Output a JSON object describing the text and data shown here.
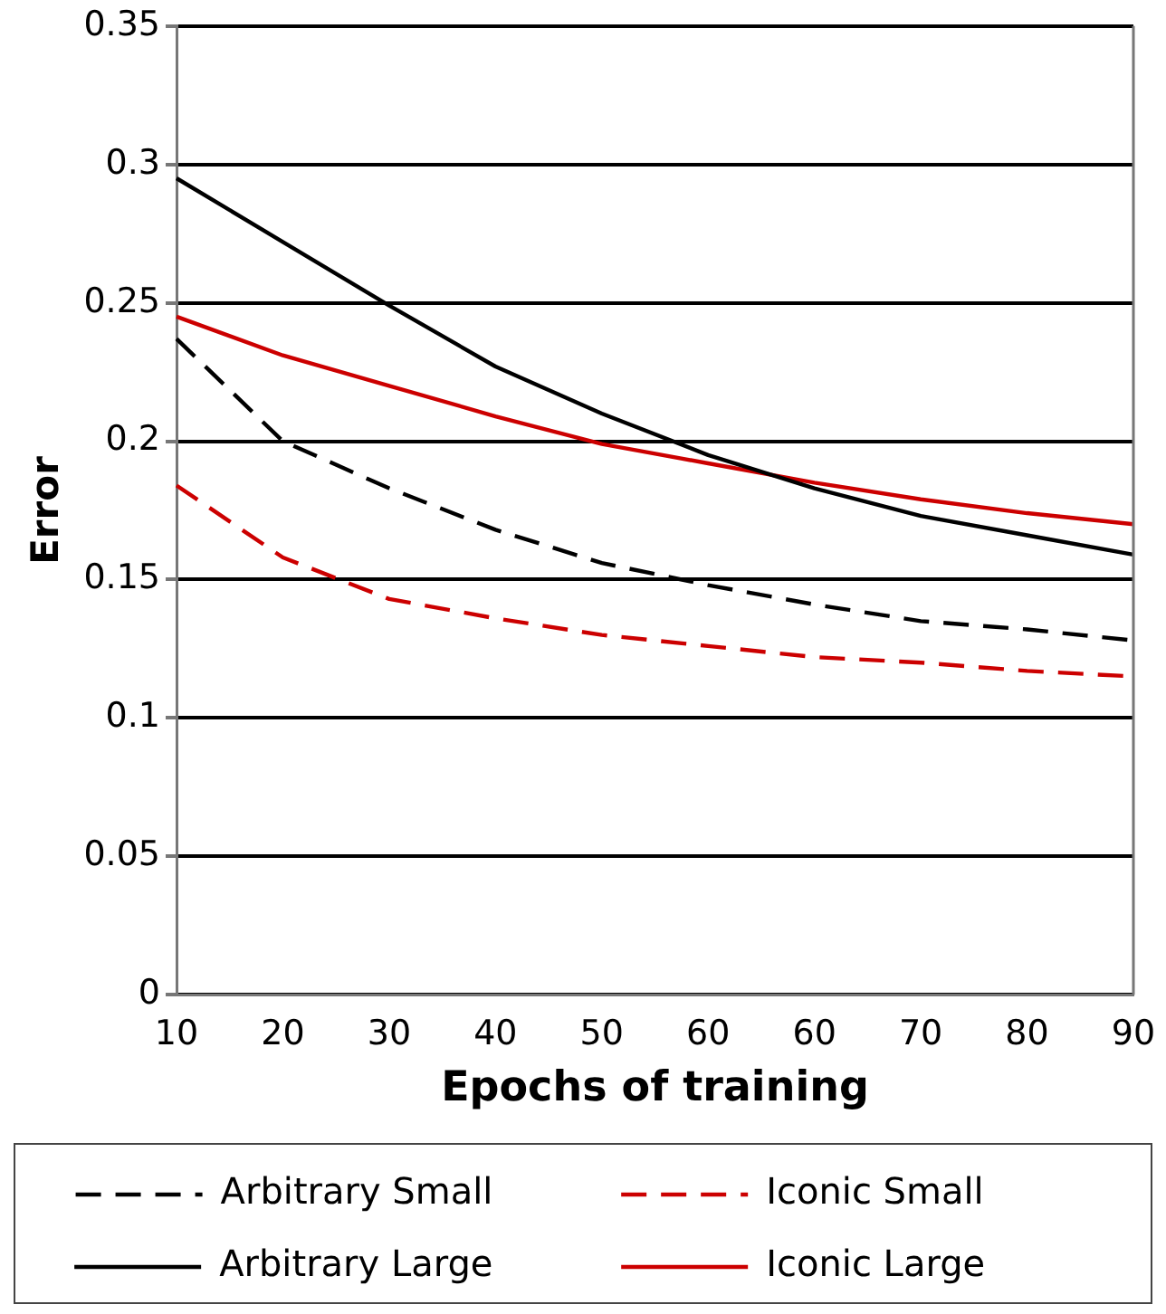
{
  "chart_data": {
    "type": "line",
    "xlabel": "Epochs of training",
    "ylabel": "Error",
    "categories": [
      "10",
      "20",
      "30",
      "40",
      "50",
      "60",
      "60",
      "70",
      "80",
      "90"
    ],
    "series": [
      {
        "name": "Arbitrary Small",
        "color": "#000000",
        "line_style": "dashed",
        "values": [
          0.237,
          0.2,
          0.183,
          0.168,
          0.156,
          0.148,
          0.141,
          0.135,
          0.132,
          0.128
        ]
      },
      {
        "name": "Iconic Small",
        "color": "#cc0000",
        "line_style": "dashed",
        "values": [
          0.184,
          0.158,
          0.143,
          0.136,
          0.13,
          0.126,
          0.122,
          0.12,
          0.117,
          0.115
        ]
      },
      {
        "name": "Arbitrary Large",
        "color": "#000000",
        "line_style": "solid",
        "values": [
          0.295,
          0.272,
          0.249,
          0.227,
          0.21,
          0.195,
          0.183,
          0.173,
          0.166,
          0.159
        ]
      },
      {
        "name": "Iconic Large",
        "color": "#cc0000",
        "line_style": "solid",
        "values": [
          0.245,
          0.231,
          0.22,
          0.209,
          0.199,
          0.192,
          0.185,
          0.179,
          0.174,
          0.17
        ]
      }
    ],
    "ylim": [
      0,
      0.35
    ],
    "yticks": [
      0,
      0.05,
      0.1,
      0.15,
      0.2,
      0.25,
      0.3,
      0.35
    ],
    "grid": "y",
    "legend": "bottom",
    "marker": "none"
  }
}
